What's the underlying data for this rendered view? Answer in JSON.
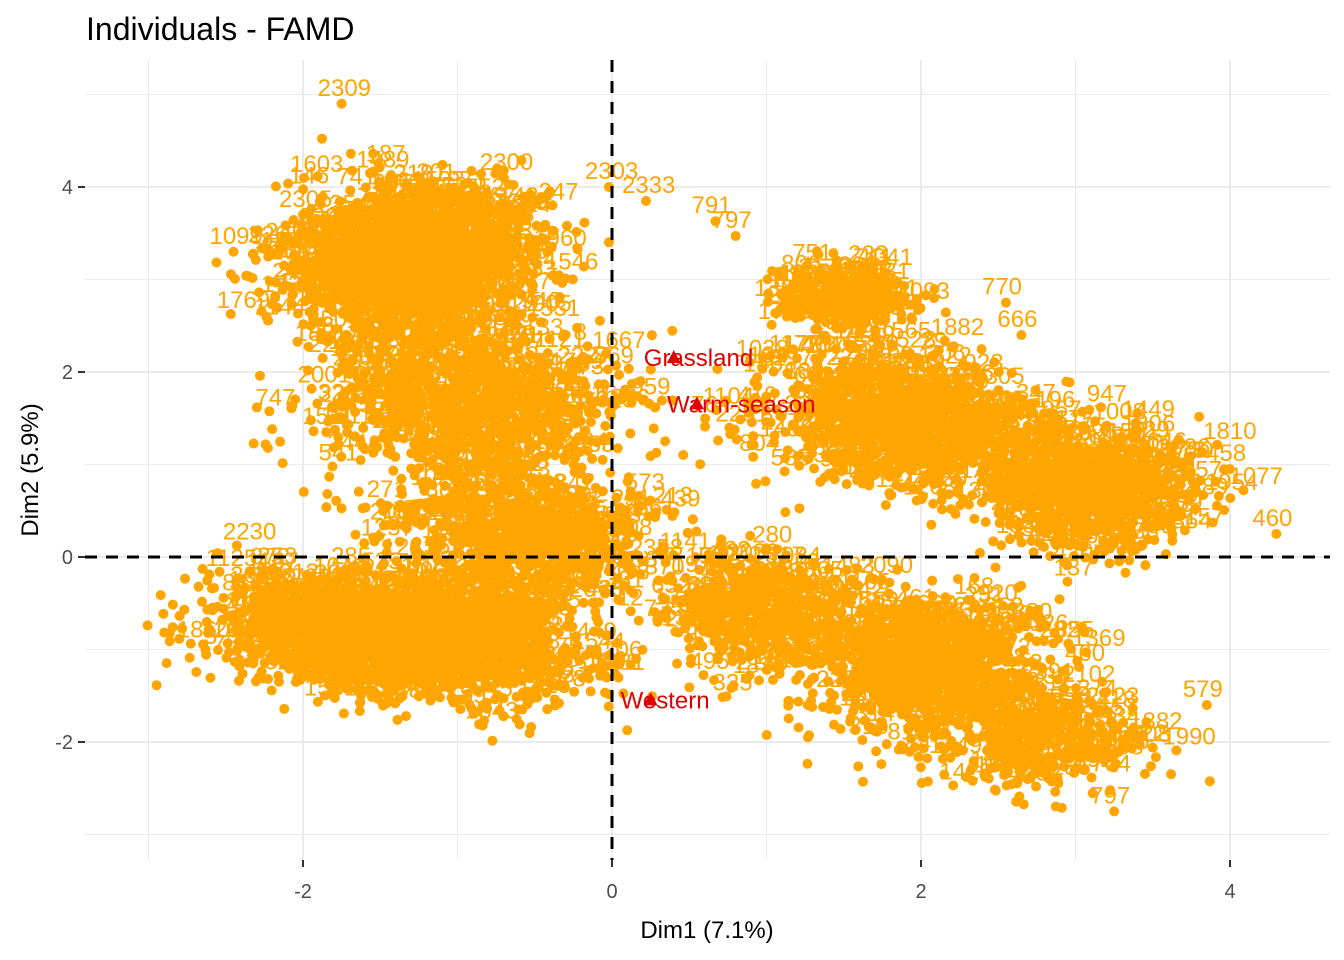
{
  "chart_data": {
    "type": "scatter",
    "title": "Individuals - FAMD",
    "xlabel": "Dim1 (7.1%)",
    "ylabel": "Dim2 (5.9%)",
    "xlim": [
      -3.4,
      4.6
    ],
    "ylim": [
      -3.3,
      5.2
    ],
    "x_ticks": [
      -2,
      0,
      2,
      4
    ],
    "y_ticks": [
      -2,
      0,
      2,
      4
    ],
    "x_tick_labels": [
      "-2",
      "0",
      "2",
      "4"
    ],
    "y_tick_labels": [
      "-2",
      "0",
      "2",
      "4"
    ],
    "reference_lines": {
      "x": 0,
      "y": 0,
      "style": "dashed"
    },
    "grid": true,
    "legend": "none",
    "colors": {
      "individuals": "#FFA500",
      "categories": "#E00000"
    },
    "series": [
      {
        "role": "individuals",
        "marker": "circle",
        "labeled_points": [
          {
            "label": "2309",
            "x": -1.75,
            "y": 4.9
          },
          {
            "label": "2303",
            "x": -0.02,
            "y": 4.0
          },
          {
            "label": "2333",
            "x": 0.22,
            "y": 3.85
          },
          {
            "label": "791",
            "x": 0.67,
            "y": 3.63
          },
          {
            "label": "797",
            "x": 0.8,
            "y": 3.47
          },
          {
            "label": "2305",
            "x": -2.0,
            "y": 3.7
          },
          {
            "label": "2300",
            "x": -0.7,
            "y": 4.1
          },
          {
            "label": "1099",
            "x": -2.45,
            "y": 3.3
          },
          {
            "label": "806",
            "x": 1.25,
            "y": 3.0
          },
          {
            "label": "770",
            "x": 2.55,
            "y": 2.75
          },
          {
            "label": "666",
            "x": 2.65,
            "y": 2.4
          },
          {
            "label": "460",
            "x": 4.3,
            "y": 0.25
          },
          {
            "label": "458",
            "x": 4.0,
            "y": 0.95
          },
          {
            "label": "579",
            "x": 3.85,
            "y": -1.6
          },
          {
            "label": "1763",
            "x": 3.05,
            "y": -2.3
          },
          {
            "label": "797",
            "x": 3.25,
            "y": -2.75
          },
          {
            "label": "1511",
            "x": -1.85,
            "y": 1.35
          }
        ]
      },
      {
        "role": "categories",
        "marker": "triangle",
        "labeled_points": [
          {
            "label": "Grassland",
            "x": 0.4,
            "y": 2.15
          },
          {
            "label": "Warm-season",
            "x": 0.55,
            "y": 1.65
          },
          {
            "label": "Western",
            "x": 0.25,
            "y": -1.55
          }
        ]
      }
    ]
  }
}
